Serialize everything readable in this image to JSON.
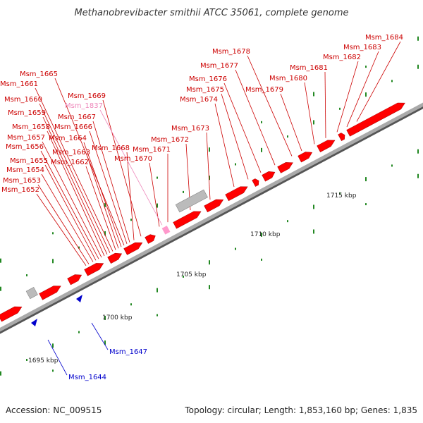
{
  "title": "Methanobrevibacter smithii ATCC 35061, complete genome",
  "footer": {
    "accession": "Accession: NC_009515",
    "topology": "Topology: circular; Length: 1,853,160 bp; Genes: 1,835"
  },
  "colors": {
    "forward_gene": "#ff0000",
    "forward_label": "#cc0000",
    "rna_gene": "#bbbbbb",
    "highlight_gene": "#ff99cc",
    "highlight_label": "#ee88bb",
    "reverse_gene": "#0000cc",
    "tick": "#228822",
    "backbone": "#999999"
  },
  "scale": {
    "unit": "kbp",
    "labels": [
      "1695 kbp",
      "1700 kbp",
      "1705 kbp",
      "1710 kbp",
      "1715 kbp"
    ]
  },
  "forward_labels": [
    "Msm_1652",
    "Msm_1653",
    "Msm_1654",
    "Msm_1655",
    "Msm_1656",
    "Msm_1657",
    "Msm_1658",
    "Msm_1659",
    "Msm_1660",
    "Msm_1661",
    "Msm_1662",
    "Msm_1663",
    "Msm_1664",
    "Msm_1665",
    "Msm_1666",
    "Msm_1667",
    "Msm_1668",
    "Msm_1669",
    "Msm_1670",
    "Msm_1671",
    "Msm_1672",
    "Msm_1673",
    "Msm_1674",
    "Msm_1675",
    "Msm_1676",
    "Msm_1677",
    "Msm_1678",
    "Msm_1679",
    "Msm_1680",
    "Msm_1681",
    "Msm_1682",
    "Msm_1683",
    "Msm_1684"
  ],
  "highlight_label": "Msm_1837",
  "reverse_labels": [
    "Msm_1647",
    "Msm_1644"
  ]
}
